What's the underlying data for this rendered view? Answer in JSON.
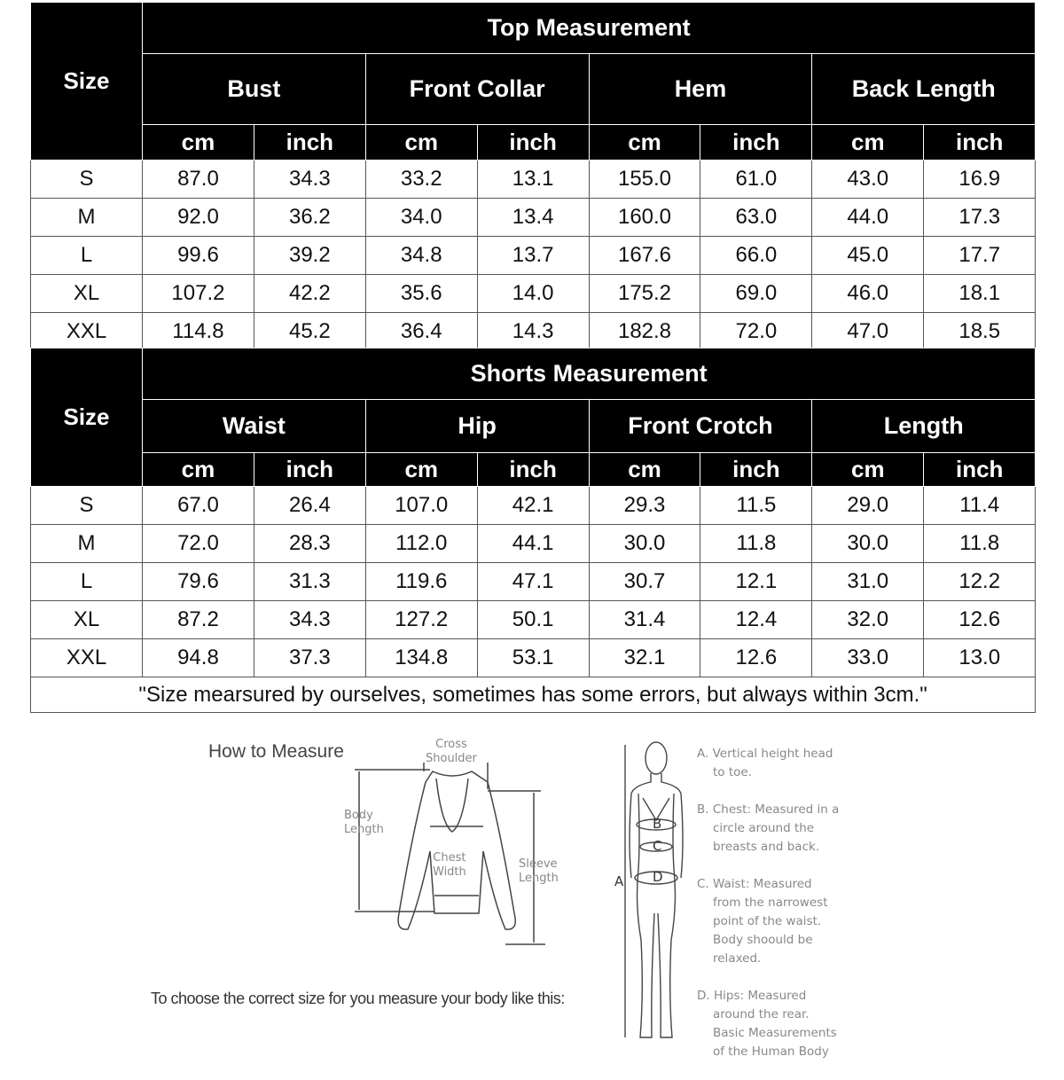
{
  "size_label": "Size",
  "units": [
    "cm",
    "inch"
  ],
  "top": {
    "title": "Top Measurement",
    "groups": [
      "Bust",
      "Front Collar",
      "Hem",
      "Back Length"
    ],
    "rows": [
      {
        "size": "S",
        "values": [
          "87.0",
          "34.3",
          "33.2",
          "13.1",
          "155.0",
          "61.0",
          "43.0",
          "16.9"
        ]
      },
      {
        "size": "M",
        "values": [
          "92.0",
          "36.2",
          "34.0",
          "13.4",
          "160.0",
          "63.0",
          "44.0",
          "17.3"
        ]
      },
      {
        "size": "L",
        "values": [
          "99.6",
          "39.2",
          "34.8",
          "13.7",
          "167.6",
          "66.0",
          "45.0",
          "17.7"
        ]
      },
      {
        "size": "XL",
        "values": [
          "107.2",
          "42.2",
          "35.6",
          "14.0",
          "175.2",
          "69.0",
          "46.0",
          "18.1"
        ]
      },
      {
        "size": "XXL",
        "values": [
          "114.8",
          "45.2",
          "36.4",
          "14.3",
          "182.8",
          "72.0",
          "47.0",
          "18.5"
        ]
      }
    ]
  },
  "shorts": {
    "title": "Shorts Measurement",
    "groups": [
      "Waist",
      "Hip",
      "Front Crotch",
      "Length"
    ],
    "rows": [
      {
        "size": "S",
        "values": [
          "67.0",
          "26.4",
          "107.0",
          "42.1",
          "29.3",
          "11.5",
          "29.0",
          "11.4"
        ]
      },
      {
        "size": "M",
        "values": [
          "72.0",
          "28.3",
          "112.0",
          "44.1",
          "30.0",
          "11.8",
          "30.0",
          "11.8"
        ]
      },
      {
        "size": "L",
        "values": [
          "79.6",
          "31.3",
          "119.6",
          "47.1",
          "30.7",
          "12.1",
          "31.0",
          "12.2"
        ]
      },
      {
        "size": "XL",
        "values": [
          "87.2",
          "34.3",
          "127.2",
          "50.1",
          "31.4",
          "12.4",
          "32.0",
          "12.6"
        ]
      },
      {
        "size": "XXL",
        "values": [
          "94.8",
          "37.3",
          "134.8",
          "53.1",
          "32.1",
          "12.6",
          "33.0",
          "13.0"
        ]
      }
    ],
    "note": "\"Size mearsured by ourselves, sometimes has some errors, but always within 3cm.\""
  },
  "how_to": {
    "title": "How to Measure",
    "cross_shoulder": [
      "Cross",
      "Shoulder"
    ],
    "body_length": [
      "Body",
      "Length"
    ],
    "chest_width": [
      "Chest",
      "Width"
    ],
    "sleeve_length": [
      "Sleeve",
      "Length"
    ],
    "instruction": "To choose the correct size for you measure your body like this:",
    "body_markers": [
      "A",
      "B",
      "C",
      "D"
    ],
    "notes": [
      [
        "A. Vertical height head",
        "to toe."
      ],
      [
        "B. Chest: Measured in a",
        "circle around the",
        "breasts and back."
      ],
      [
        "C. Waist: Measured",
        "from the narrowest",
        "point of the waist.",
        "Body shoould be",
        "relaxed."
      ],
      [
        "D. Hips: Measured",
        "around the rear.",
        "Basic Measurements",
        "of the Human Body"
      ]
    ]
  }
}
